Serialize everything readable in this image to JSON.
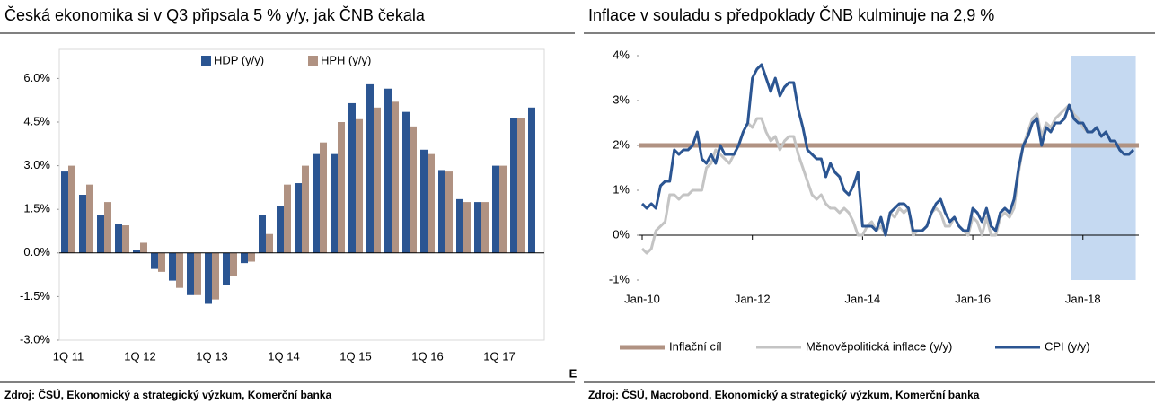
{
  "chart_data": [
    {
      "type": "bar",
      "title": "Česká ekonomika si v Q3 připsala 5 % y/y, jak ČNB čekala",
      "source": "Zdroj: ČSÚ, Ekonomický a strategický výzkum, Komerční banka",
      "annotation": "E",
      "categories": [
        "1Q 11",
        null,
        null,
        null,
        "1Q 12",
        null,
        null,
        null,
        "1Q 13",
        null,
        null,
        null,
        "1Q 14",
        null,
        null,
        null,
        "1Q 15",
        null,
        null,
        null,
        "1Q 16",
        null,
        null,
        null,
        "1Q 17",
        null,
        null
      ],
      "series": [
        {
          "name": "HDP (y/y)",
          "color": "#2b5592",
          "values": [
            2.8,
            2.0,
            1.3,
            1.0,
            0.1,
            -0.55,
            -0.95,
            -1.45,
            -1.75,
            -1.1,
            -0.35,
            1.3,
            1.6,
            2.4,
            3.4,
            3.4,
            5.15,
            5.8,
            5.65,
            4.85,
            3.55,
            2.85,
            1.85,
            1.75,
            3.0,
            4.65,
            5.0
          ]
        },
        {
          "name": "HPH (y/y)",
          "color": "#b09282",
          "values": [
            3.0,
            2.35,
            1.75,
            0.95,
            0.35,
            -0.65,
            -1.2,
            -1.45,
            -1.6,
            -0.8,
            -0.3,
            0.65,
            2.35,
            3.0,
            3.8,
            4.5,
            4.6,
            5.0,
            5.2,
            4.35,
            3.4,
            2.8,
            1.75,
            1.75,
            3.0,
            4.65,
            null
          ]
        }
      ],
      "ylim": [
        -3,
        7
      ],
      "yticks": [
        {
          "value": -3,
          "label": "-3.0%"
        },
        {
          "value": -1.5,
          "label": "-1.5%"
        },
        {
          "value": 0,
          "label": "0.0%"
        },
        {
          "value": 1.5,
          "label": "1.5%"
        },
        {
          "value": 3,
          "label": "3.0%"
        },
        {
          "value": 4.5,
          "label": "4.5%"
        },
        {
          "value": 6,
          "label": "6.0%"
        }
      ],
      "grid": false
    },
    {
      "type": "line",
      "title": "Inflace v souladu s předpoklady ČNB kulminuje na 2,9 %",
      "source": "Zdroj: ČSÚ, Macrobond, Ekonomický a strategický výzkum, Komerční banka",
      "x": [
        "2010-01",
        "2010-02",
        "2010-03",
        "2010-04",
        "2010-05",
        "2010-06",
        "2010-07",
        "2010-08",
        "2010-09",
        "2010-10",
        "2010-11",
        "2010-12",
        "2011-01",
        "2011-02",
        "2011-03",
        "2011-04",
        "2011-05",
        "2011-06",
        "2011-07",
        "2011-08",
        "2011-09",
        "2011-10",
        "2011-11",
        "2011-12",
        "2012-01",
        "2012-02",
        "2012-03",
        "2012-04",
        "2012-05",
        "2012-06",
        "2012-07",
        "2012-08",
        "2012-09",
        "2012-10",
        "2012-11",
        "2012-12",
        "2013-01",
        "2013-02",
        "2013-03",
        "2013-04",
        "2013-05",
        "2013-06",
        "2013-07",
        "2013-08",
        "2013-09",
        "2013-10",
        "2013-11",
        "2013-12",
        "2014-01",
        "2014-02",
        "2014-03",
        "2014-04",
        "2014-05",
        "2014-06",
        "2014-07",
        "2014-08",
        "2014-09",
        "2014-10",
        "2014-11",
        "2014-12",
        "2015-01",
        "2015-02",
        "2015-03",
        "2015-04",
        "2015-05",
        "2015-06",
        "2015-07",
        "2015-08",
        "2015-09",
        "2015-10",
        "2015-11",
        "2015-12",
        "2016-01",
        "2016-02",
        "2016-03",
        "2016-04",
        "2016-05",
        "2016-06",
        "2016-07",
        "2016-08",
        "2016-09",
        "2016-10",
        "2016-11",
        "2016-12",
        "2017-01",
        "2017-02",
        "2017-03",
        "2017-04",
        "2017-05",
        "2017-06",
        "2017-07",
        "2017-08",
        "2017-09",
        "2017-10",
        "2017-11",
        "2017-12",
        "2018-01",
        "2018-02",
        "2018-03",
        "2018-04",
        "2018-05",
        "2018-06",
        "2018-07",
        "2018-08",
        "2018-09",
        "2018-10",
        "2018-11",
        "2018-12"
      ],
      "hlines": [
        {
          "name": "Inflační cíl",
          "value": 2,
          "color": "#b09282"
        }
      ],
      "series": [
        {
          "name": "Měnověpolitická inflace (y/y)",
          "color": "#c4c4c4",
          "values": [
            -0.3,
            -0.4,
            -0.3,
            0.1,
            0.2,
            0.3,
            0.9,
            0.9,
            0.8,
            0.9,
            0.9,
            1.0,
            1.0,
            1.0,
            1.5,
            1.6,
            1.9,
            1.8,
            1.7,
            1.6,
            1.8,
            2.0,
            2.3,
            2.5,
            2.4,
            2.6,
            2.6,
            2.3,
            2.1,
            2.2,
            1.9,
            2.1,
            2.2,
            2.2,
            1.8,
            1.5,
            1.2,
            0.9,
            0.8,
            0.9,
            0.7,
            0.6,
            0.6,
            0.5,
            0.6,
            0.5,
            0.3,
            0.0,
            0.0,
            0.2,
            0.3,
            0.1,
            0.2,
            0.0,
            0.5,
            0.4,
            0.6,
            0.5,
            0.6,
            0.0,
            0.1,
            0.1,
            0.2,
            0.5,
            0.6,
            0.5,
            0.2,
            0.2,
            0.4,
            0.2,
            0.1,
            0.0,
            0.4,
            0.3,
            0.0,
            0.4,
            0.0,
            0.0,
            0.4,
            0.5,
            0.4,
            0.6,
            1.4,
            2.0,
            2.3,
            2.6,
            2.7,
            2.2,
            2.5,
            2.4,
            2.6,
            2.7,
            2.8,
            2.9,
            2.7,
            2.6,
            2.4,
            2.3,
            2.3,
            2.4,
            2.2,
            2.3,
            2.1,
            2.1,
            1.9,
            1.8,
            1.8,
            1.9
          ]
        },
        {
          "name": "CPI (y/y)",
          "color": "#2b5592",
          "values": [
            0.7,
            0.6,
            0.7,
            0.6,
            1.1,
            1.2,
            1.2,
            1.9,
            1.8,
            1.9,
            1.9,
            2.0,
            2.3,
            1.7,
            1.6,
            1.8,
            1.6,
            2.0,
            1.8,
            1.8,
            1.8,
            2.0,
            2.3,
            2.5,
            3.5,
            3.7,
            3.8,
            3.5,
            3.2,
            3.5,
            3.1,
            3.3,
            3.4,
            3.4,
            2.8,
            2.4,
            1.9,
            1.8,
            1.7,
            1.7,
            1.3,
            1.6,
            1.4,
            1.3,
            1.0,
            0.9,
            1.1,
            1.4,
            0.2,
            0.2,
            0.2,
            0.1,
            0.4,
            0.0,
            0.5,
            0.6,
            0.7,
            0.7,
            0.6,
            0.1,
            0.1,
            0.1,
            0.2,
            0.5,
            0.7,
            0.8,
            0.5,
            0.3,
            0.4,
            0.2,
            0.1,
            0.1,
            0.6,
            0.5,
            0.3,
            0.6,
            0.2,
            0.1,
            0.5,
            0.6,
            0.5,
            0.8,
            1.5,
            2.0,
            2.2,
            2.5,
            2.6,
            2.0,
            2.4,
            2.3,
            2.5,
            2.5,
            2.6,
            2.9,
            2.6,
            2.5,
            2.5,
            2.3,
            2.3,
            2.4,
            2.2,
            2.3,
            2.1,
            2.1,
            1.9,
            1.8,
            1.8,
            1.9
          ]
        }
      ],
      "shade": {
        "from": "2017-11",
        "to": "2018-12",
        "color": "#c5d9f1"
      },
      "ylim": [
        -1,
        4
      ],
      "yticks": [
        {
          "value": -1,
          "label": "-1%"
        },
        {
          "value": 0,
          "label": "0%"
        },
        {
          "value": 1,
          "label": "1%"
        },
        {
          "value": 2,
          "label": "2%"
        },
        {
          "value": 3,
          "label": "3%"
        },
        {
          "value": 4,
          "label": "4%"
        }
      ],
      "xticks": [
        {
          "value": "2010-01",
          "label": "Jan-10"
        },
        {
          "value": "2012-01",
          "label": "Jan-12"
        },
        {
          "value": "2014-01",
          "label": "Jan-14"
        },
        {
          "value": "2016-01",
          "label": "Jan-16"
        },
        {
          "value": "2018-01",
          "label": "Jan-18"
        }
      ],
      "grid": false
    }
  ]
}
